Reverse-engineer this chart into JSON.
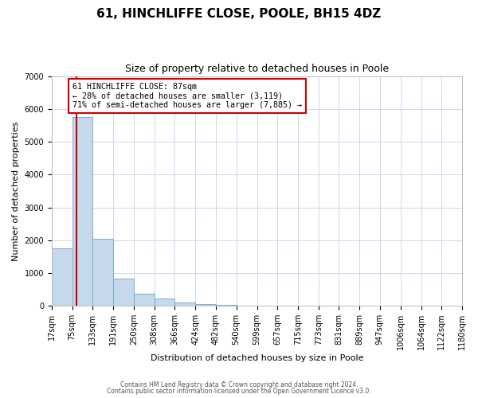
{
  "title": "61, HINCHLIFFE CLOSE, POOLE, BH15 4DZ",
  "subtitle": "Size of property relative to detached houses in Poole",
  "xlabel": "Distribution of detached houses by size in Poole",
  "ylabel": "Number of detached properties",
  "bar_color": "#c5d8ec",
  "bar_edge_color": "#7aaed0",
  "property_size": 87,
  "vline_color": "#cc0000",
  "annotation_line1": "61 HINCHLIFFE CLOSE: 87sqm",
  "annotation_line2": "← 28% of detached houses are smaller (3,119)",
  "annotation_line3": "71% of semi-detached houses are larger (7,885) →",
  "annotation_box_color": "#ffffff",
  "annotation_box_edge": "#cc0000",
  "bin_edges": [
    17,
    75,
    133,
    191,
    250,
    308,
    366,
    424,
    482,
    540,
    599,
    657,
    715,
    773,
    831,
    889,
    947,
    1006,
    1064,
    1122,
    1180
  ],
  "bar_heights": [
    1750,
    5750,
    2050,
    830,
    375,
    225,
    100,
    60,
    30,
    0,
    0,
    0,
    0,
    0,
    0,
    0,
    0,
    0,
    0,
    0
  ],
  "ylim": [
    0,
    7000
  ],
  "yticks": [
    0,
    1000,
    2000,
    3000,
    4000,
    5000,
    6000,
    7000
  ],
  "xtick_labels": [
    "17sqm",
    "75sqm",
    "133sqm",
    "191sqm",
    "250sqm",
    "308sqm",
    "366sqm",
    "424sqm",
    "482sqm",
    "540sqm",
    "599sqm",
    "657sqm",
    "715sqm",
    "773sqm",
    "831sqm",
    "889sqm",
    "947sqm",
    "1006sqm",
    "1064sqm",
    "1122sqm",
    "1180sqm"
  ],
  "footer_line1": "Contains HM Land Registry data © Crown copyright and database right 2024.",
  "footer_line2": "Contains public sector information licensed under the Open Government Licence v3.0.",
  "background_color": "#ffffff",
  "grid_color": "#c8d8ec",
  "title_fontsize": 11,
  "subtitle_fontsize": 9,
  "axis_label_fontsize": 8,
  "tick_fontsize": 7
}
